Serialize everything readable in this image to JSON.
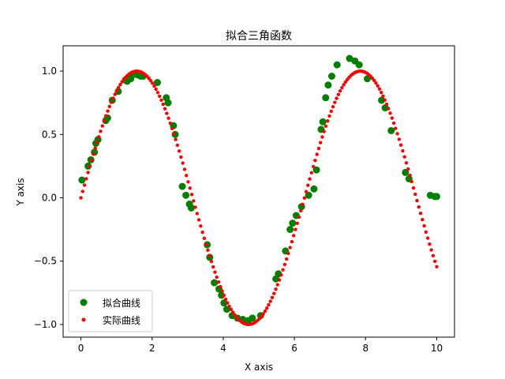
{
  "chart_data": {
    "type": "scatter",
    "title": "拟合三角函数",
    "xlabel": "X axis",
    "ylabel": "Y axis",
    "xlim": [
      -0.5,
      10.5
    ],
    "ylim": [
      -1.1,
      1.2
    ],
    "xticks": [
      0,
      2,
      4,
      6,
      8,
      10
    ],
    "xtick_labels": [
      "0",
      "2",
      "4",
      "6",
      "8",
      "10"
    ],
    "yticks": [
      -1.0,
      -0.5,
      0.0,
      0.5,
      1.0
    ],
    "ytick_labels": [
      "−1.0",
      "−0.5",
      "0.0",
      "0.5",
      "1.0"
    ],
    "grid": false,
    "legend_position": "lower-left",
    "series": [
      {
        "name": "拟合曲线",
        "color": "#008000",
        "marker": "large-circle",
        "points": [
          [
            0.03,
            0.14
          ],
          [
            0.2,
            0.25
          ],
          [
            0.28,
            0.3
          ],
          [
            0.38,
            0.36
          ],
          [
            0.42,
            0.43
          ],
          [
            0.48,
            0.46
          ],
          [
            0.7,
            0.61
          ],
          [
            0.75,
            0.63
          ],
          [
            0.88,
            0.77
          ],
          [
            1.05,
            0.84
          ],
          [
            1.25,
            0.93
          ],
          [
            1.3,
            0.92
          ],
          [
            1.4,
            0.94
          ],
          [
            1.45,
            0.97
          ],
          [
            1.6,
            0.97
          ],
          [
            1.68,
            0.96
          ],
          [
            1.75,
            0.96
          ],
          [
            2.15,
            0.91
          ],
          [
            2.4,
            0.79
          ],
          [
            2.45,
            0.75
          ],
          [
            2.6,
            0.57
          ],
          [
            2.65,
            0.5
          ],
          [
            2.85,
            0.09
          ],
          [
            2.95,
            0.02
          ],
          [
            3.05,
            -0.05
          ],
          [
            3.1,
            -0.08
          ],
          [
            3.55,
            -0.37
          ],
          [
            3.62,
            -0.47
          ],
          [
            3.75,
            -0.67
          ],
          [
            3.88,
            -0.72
          ],
          [
            3.95,
            -0.77
          ],
          [
            4.02,
            -0.83
          ],
          [
            4.1,
            -0.88
          ],
          [
            4.25,
            -0.93
          ],
          [
            4.4,
            -0.95
          ],
          [
            4.55,
            -0.96
          ],
          [
            4.7,
            -0.97
          ],
          [
            4.82,
            -0.95
          ],
          [
            5.05,
            -0.93
          ],
          [
            5.48,
            -0.64
          ],
          [
            5.55,
            -0.6
          ],
          [
            5.75,
            -0.42
          ],
          [
            5.88,
            -0.25
          ],
          [
            5.95,
            -0.2
          ],
          [
            6.05,
            -0.14
          ],
          [
            6.2,
            -0.07
          ],
          [
            6.4,
            0.02
          ],
          [
            6.55,
            0.07
          ],
          [
            6.62,
            0.22
          ],
          [
            6.75,
            0.54
          ],
          [
            6.8,
            0.6
          ],
          [
            6.88,
            0.79
          ],
          [
            6.95,
            0.89
          ],
          [
            7.05,
            0.96
          ],
          [
            7.2,
            1.05
          ],
          [
            7.55,
            1.1
          ],
          [
            7.7,
            1.08
          ],
          [
            7.82,
            1.05
          ],
          [
            8.05,
            0.94
          ],
          [
            8.45,
            0.77
          ],
          [
            8.55,
            0.71
          ],
          [
            8.72,
            0.53
          ],
          [
            9.12,
            0.2
          ],
          [
            9.22,
            0.15
          ],
          [
            9.82,
            0.02
          ],
          [
            9.95,
            0.01
          ],
          [
            10.0,
            0.01
          ]
        ]
      },
      {
        "name": "实际曲线",
        "color": "#ff0000",
        "marker": "small-dot",
        "function": "sin",
        "x_start": 0.0,
        "x_end": 10.0,
        "n_points": 200
      }
    ]
  }
}
